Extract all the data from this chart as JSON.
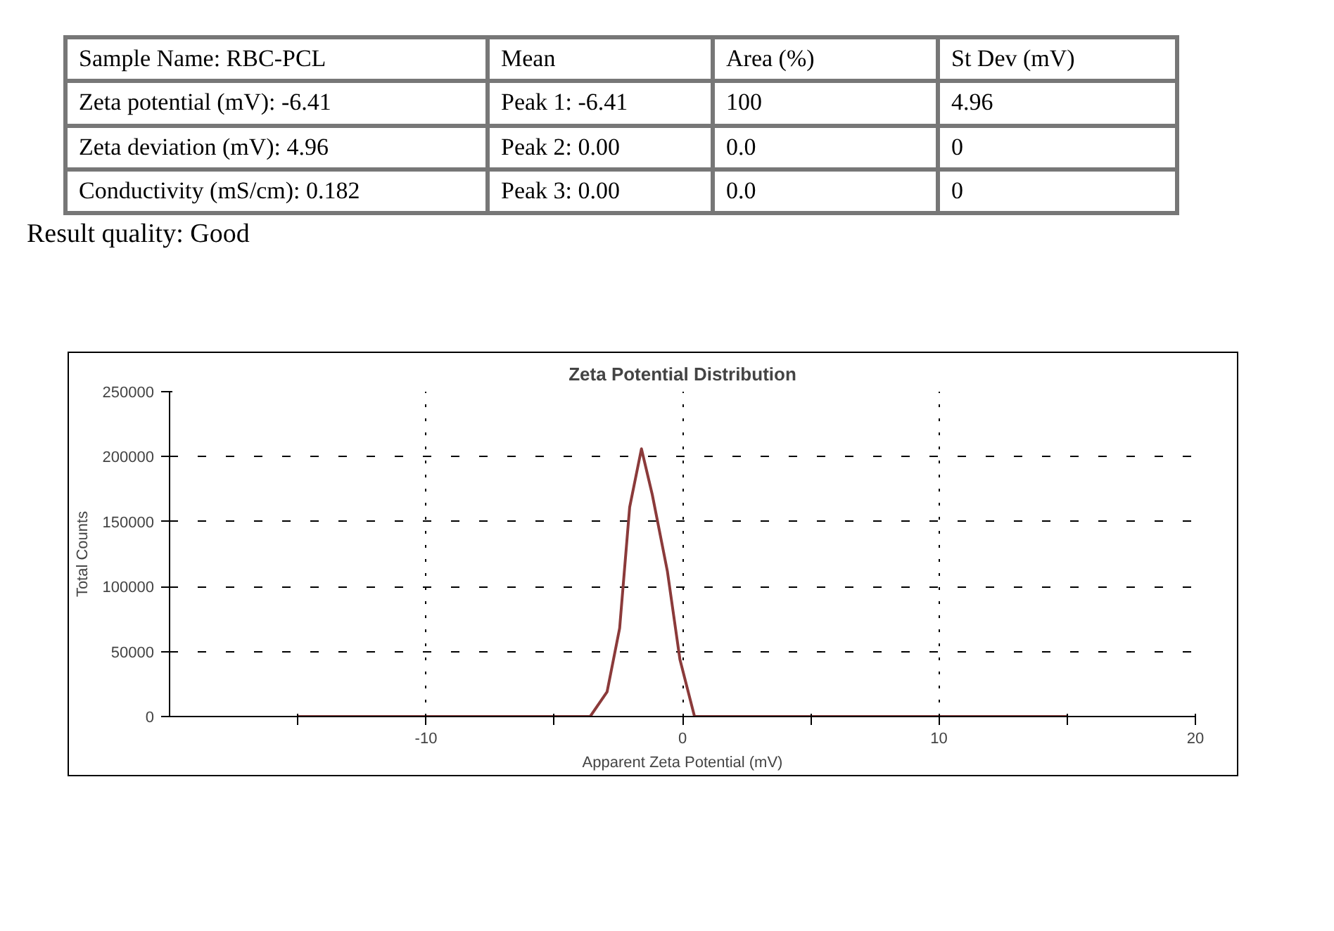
{
  "chart_data": {
    "type": "line",
    "title": "Zeta Potential Distribution",
    "xlabel": "Apparent Zeta Potential (mV)",
    "ylabel": "Total Counts",
    "annotations": [
      "Sample Name: RBC-PCL",
      "Mean",
      "Area (%)",
      "St Dev (mV)",
      "Zeta potential (mV): -6.41",
      "Peak 1: -6.41",
      "100",
      "4.96",
      "Zeta deviation (mV): 4.96",
      "Peak 2: 0.00",
      "0.0",
      "0",
      "Conductivity (mS/cm): 0.182",
      "Peak 3: 0.00",
      "0.0",
      "0",
      "Result quality: Good"
    ],
    "series": [
      {
        "color": "#8b3a3a",
        "x": [
          -15,
          -3.6,
          -2.94,
          -2.45,
          -2.06,
          -1.6,
          -1.18,
          -0.59,
          -0.1,
          0.47,
          15
        ],
        "values": [
          0,
          0,
          19000,
          68000,
          161000,
          206000,
          171000,
          112000,
          44000,
          0,
          0
        ]
      }
    ],
    "xlim": [
      -20,
      20
    ],
    "ylim": [
      0,
      250000
    ],
    "xticks": [
      {
        "value": -15,
        "label": null
      },
      -10,
      {
        "value": -5,
        "label": null
      },
      0,
      {
        "value": 5,
        "label": null
      },
      10,
      {
        "value": 15,
        "label": null
      },
      20
    ],
    "yticks": [
      0,
      50000,
      100000,
      150000,
      200000,
      250000
    ],
    "grid": true,
    "line_style": "solid"
  }
}
